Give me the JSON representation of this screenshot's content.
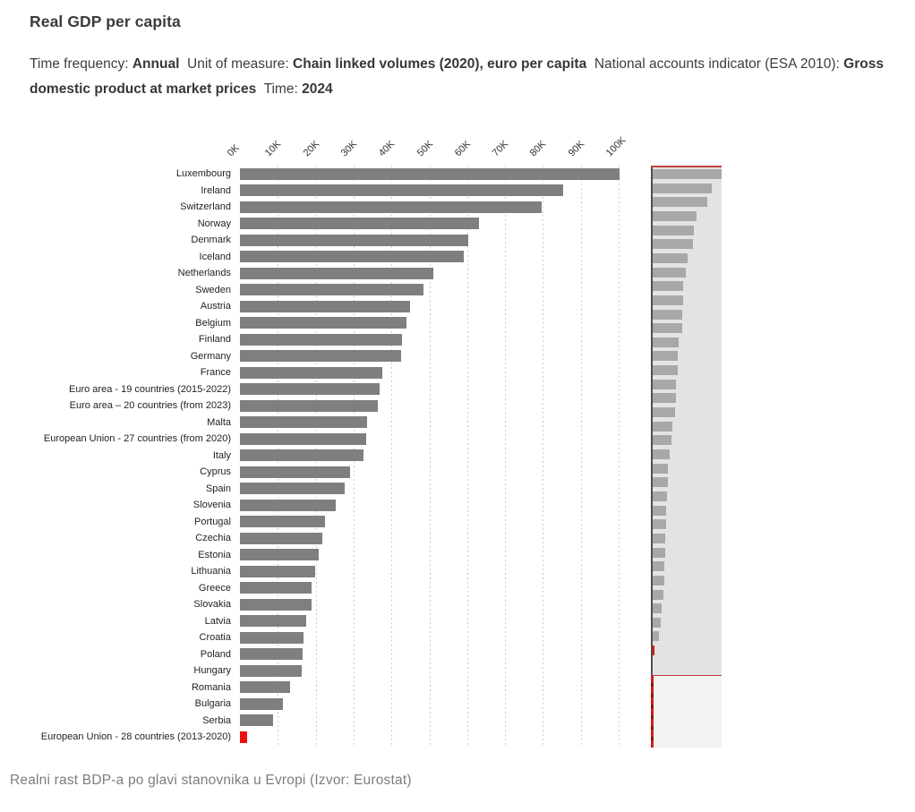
{
  "header": {
    "title": "Real GDP per capita"
  },
  "meta": {
    "segments": [
      {
        "text": "Time frequency: ",
        "bold": false
      },
      {
        "text": "Annual",
        "bold": true
      },
      {
        "text": "  Unit of measure: ",
        "bold": false
      },
      {
        "text": "Chain linked volumes (2020), euro per capita",
        "bold": true
      },
      {
        "text": "  National accounts indicator (ESA 2010): ",
        "bold": false
      },
      {
        "text": "Gross domestic product at market prices",
        "bold": true
      },
      {
        "text": "  Time: ",
        "bold": false
      },
      {
        "text": "2024",
        "bold": true
      }
    ]
  },
  "chart_data": {
    "type": "bar",
    "orientation": "horizontal",
    "title": "Real GDP per capita",
    "xlabel": "euro per capita",
    "ylabel": "",
    "xlim": [
      0,
      105000
    ],
    "x_ticks": [
      "0K",
      "10K",
      "20K",
      "30K",
      "40K",
      "50K",
      "60K",
      "70K",
      "80K",
      "90K",
      "100K"
    ],
    "x_tick_step": 10000,
    "grid": "vertical dotted",
    "legend": "none",
    "categories": [
      "Luxembourg",
      "Ireland",
      "Switzerland",
      "Norway",
      "Denmark",
      "Iceland",
      "Netherlands",
      "Sweden",
      "Austria",
      "Belgium",
      "Finland",
      "Germany",
      "France",
      "Euro area - 19 countries  (2015-2022)",
      "Euro area – 20 countries (from 2023)",
      "Malta",
      "European Union - 27 countries (from 2020)",
      "Italy",
      "Cyprus",
      "Spain",
      "Slovenia",
      "Portugal",
      "Czechia",
      "Estonia",
      "Lithuania",
      "Greece",
      "Slovakia",
      "Latvia",
      "Croatia",
      "Poland",
      "Hungary",
      "Romania",
      "Bulgaria",
      "Serbia",
      "European Union - 28 countries (2013-2020)"
    ],
    "values": [
      100200,
      85300,
      79700,
      63200,
      60300,
      59200,
      51000,
      48400,
      44800,
      43900,
      42900,
      42600,
      37600,
      36900,
      36500,
      33500,
      33400,
      32700,
      29100,
      27700,
      25300,
      22400,
      21800,
      20900,
      19900,
      19000,
      18800,
      17600,
      16900,
      16600,
      16200,
      13200,
      11300,
      8800,
      1800
    ],
    "bar_color": "#7f7f7f",
    "highlight_color": "#ec0f0f",
    "highlight_category": "European Union - 28 countries (2013-2020)",
    "minimap": {
      "bar_color": "#a8a8a8",
      "selection_background": "#e3e3e3",
      "outside_background": "#f2f2f2",
      "border_color": "#c23a34"
    }
  },
  "caption": {
    "text": "Realni rast BDP-a po glavi stanovnika u Evropi (Izvor: Eurostat)"
  }
}
